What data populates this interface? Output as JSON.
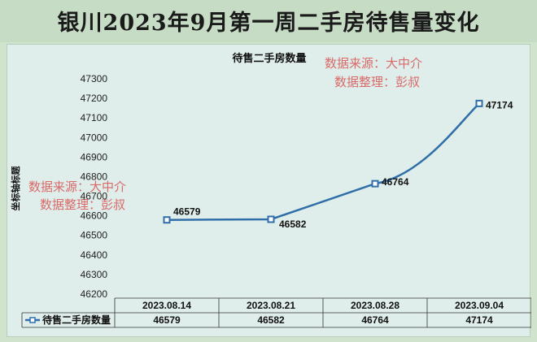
{
  "title": "银川2023年9月第一周二手房待售量变化",
  "chart_data": {
    "type": "line",
    "title": "待售二手房数量",
    "ylabel": "坐标轴标题",
    "xlabel": "",
    "categories": [
      "2023.08.14",
      "2023.08.21",
      "2023.08.28",
      "2023.09.04"
    ],
    "series": [
      {
        "name": "待售二手房数量",
        "values": [
          46579,
          46582,
          46764,
          47174
        ]
      }
    ],
    "ylim": [
      46200,
      47300
    ],
    "yticks": [
      46200,
      46300,
      46400,
      46500,
      46600,
      46700,
      46800,
      46900,
      47000,
      47100,
      47200,
      47300
    ],
    "grid": false,
    "data_table": true,
    "colors": {
      "series": "#2f6ea8",
      "marker_fill": "#ffffff",
      "watermark": "#d96a6a",
      "background": "#dfeeea"
    }
  },
  "watermarks": [
    {
      "line1": "数据来源：大中介",
      "line2": "数据整理：彭叔"
    },
    {
      "line1": "数据来源：大中介",
      "line2": "数据整理：彭叔"
    }
  ]
}
